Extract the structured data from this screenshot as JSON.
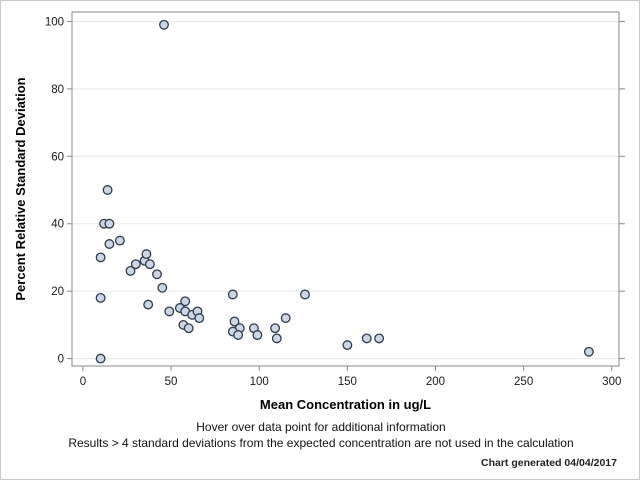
{
  "chart_data": {
    "type": "scatter",
    "title": "",
    "xlabel": "Mean Concentration in ug/L",
    "ylabel": "Percent Relative Standard Deviation",
    "xlim": [
      -6.2,
      304.1
    ],
    "ylim": [
      -2.2,
      102.8
    ],
    "x_ticks": [
      0,
      50,
      100,
      150,
      200,
      250,
      300
    ],
    "y_ticks": [
      0,
      20,
      40,
      60,
      80,
      100
    ],
    "grid": "horizontal-only",
    "legend": "none",
    "points": [
      [
        46,
        99
      ],
      [
        14,
        50
      ],
      [
        12,
        40
      ],
      [
        15,
        40
      ],
      [
        15,
        34
      ],
      [
        21,
        35
      ],
      [
        10,
        30
      ],
      [
        10,
        18
      ],
      [
        10,
        0
      ],
      [
        27,
        26
      ],
      [
        30,
        28
      ],
      [
        35,
        29
      ],
      [
        36,
        31
      ],
      [
        38,
        28
      ],
      [
        42,
        25
      ],
      [
        45,
        21
      ],
      [
        37,
        16
      ],
      [
        49,
        14
      ],
      [
        55,
        15
      ],
      [
        58,
        17
      ],
      [
        58,
        14
      ],
      [
        62,
        13
      ],
      [
        65,
        14
      ],
      [
        66,
        12
      ],
      [
        57,
        10
      ],
      [
        60,
        9
      ],
      [
        85,
        19
      ],
      [
        86,
        11
      ],
      [
        89,
        9
      ],
      [
        85,
        8
      ],
      [
        88,
        7
      ],
      [
        97,
        9
      ],
      [
        99,
        7
      ],
      [
        109,
        9
      ],
      [
        110,
        6
      ],
      [
        115,
        12
      ],
      [
        126,
        19
      ],
      [
        150,
        4
      ],
      [
        161,
        6
      ],
      [
        168,
        6
      ],
      [
        287,
        2
      ]
    ]
  },
  "footer": {
    "line1": "Hover over data point for additional information",
    "line2": "Results > 4 standard deviations from the expected concentration are not used in the calculation",
    "generated": "Chart generated 04/04/2017"
  },
  "colors": {
    "marker_fill": "#ccd6e4",
    "marker_stroke": "#2f3b4d",
    "grid_line": "#e8e8e8",
    "axis_frame": "#8a8a8a",
    "tick_label": "#1a1a1a"
  }
}
